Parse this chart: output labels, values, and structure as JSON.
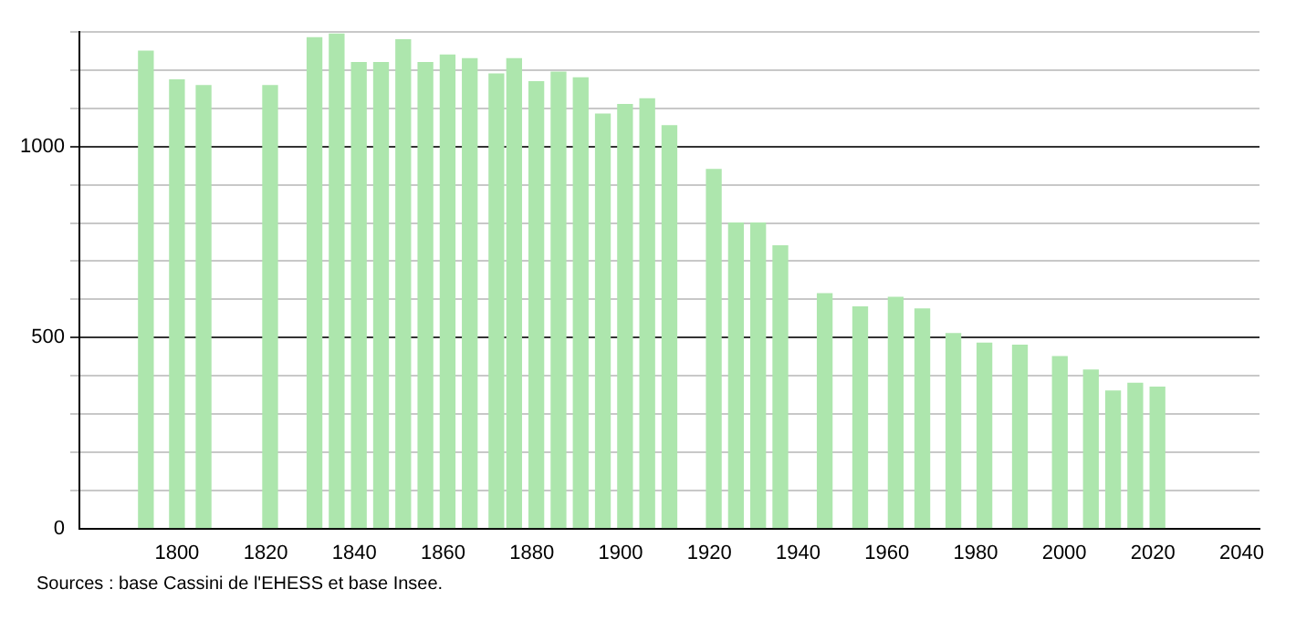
{
  "chart_data": {
    "type": "bar",
    "x": [
      1793,
      1800,
      1806,
      1821,
      1831,
      1836,
      1841,
      1846,
      1851,
      1856,
      1861,
      1866,
      1872,
      1876,
      1881,
      1886,
      1891,
      1896,
      1901,
      1906,
      1911,
      1921,
      1926,
      1931,
      1936,
      1946,
      1954,
      1962,
      1968,
      1975,
      1982,
      1990,
      1999,
      2006,
      2011,
      2016,
      2021
    ],
    "values": [
      1250,
      1175,
      1160,
      1160,
      1285,
      1295,
      1220,
      1220,
      1280,
      1220,
      1240,
      1230,
      1190,
      1230,
      1170,
      1195,
      1180,
      1085,
      1110,
      1125,
      1055,
      940,
      800,
      800,
      740,
      615,
      580,
      605,
      575,
      510,
      485,
      480,
      450,
      415,
      360,
      380,
      370
    ],
    "color": "#ade6ad",
    "xlim": [
      1778,
      2044
    ],
    "xticks": [
      1800,
      1820,
      1840,
      1860,
      1880,
      1900,
      1920,
      1940,
      1960,
      1980,
      2000,
      2020,
      2040
    ],
    "ylim": [
      0,
      1300
    ],
    "yticks": [
      0,
      {
        "value": 100,
        "label": null
      },
      {
        "value": 200,
        "label": null
      },
      {
        "value": 300,
        "label": null
      },
      {
        "value": 400,
        "label": null
      },
      500,
      {
        "value": 600,
        "label": null
      },
      {
        "value": 700,
        "label": null
      },
      {
        "value": 800,
        "label": null
      },
      {
        "value": 900,
        "label": null
      },
      1000,
      {
        "value": 1100,
        "label": null
      },
      {
        "value": 1200,
        "label": null
      },
      {
        "value": 1300,
        "label": null
      }
    ],
    "grid": "y",
    "annotations": [
      "Sources : base Cassini de l'EHESS et base Insee."
    ]
  }
}
